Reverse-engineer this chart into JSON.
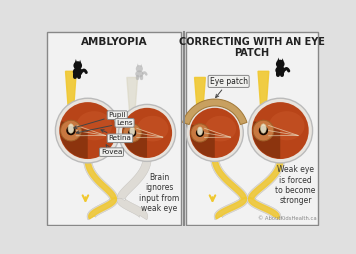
{
  "title_left": "AMBLYOPIA",
  "title_right": "CORRECTING WITH AN EYE\nPATCH",
  "bg_color": "#e0e0e0",
  "panel_bg": "#f2f2f2",
  "sclera_color": "#e8e4de",
  "sclera_edge": "#bbbbbb",
  "retina_fill": "#b84418",
  "retina_shadow": "#7a2e0a",
  "retina_light": "#d06030",
  "iris_color": "#c87840",
  "iris_edge": "#a06028",
  "pupil_dark": "#180800",
  "lens_highlight": "#f0e8d0",
  "nerve_color": "#dddad4",
  "nerve_edge": "#c0bdb8",
  "signal_yellow": "#f0c830",
  "signal_dim": "#d8d4c0",
  "patch_fill": "#c8a060",
  "patch_edge": "#a07838",
  "cat_black": "#111111",
  "cat_gray": "#b0b0b0",
  "label_bg": "#f0f0ee",
  "label_edge": "#888888",
  "arrow_color": "#444444",
  "divider_color": "#888888",
  "text_color": "#333333",
  "copyright_color": "#888888",
  "copyright": "© AboutKidsHealth.ca",
  "text_brain": "Brain\nignores\ninput from\nweak eye",
  "text_weak": "Weak eye\nis forced\nto become\nstronger",
  "text_patch": "Eye patch"
}
